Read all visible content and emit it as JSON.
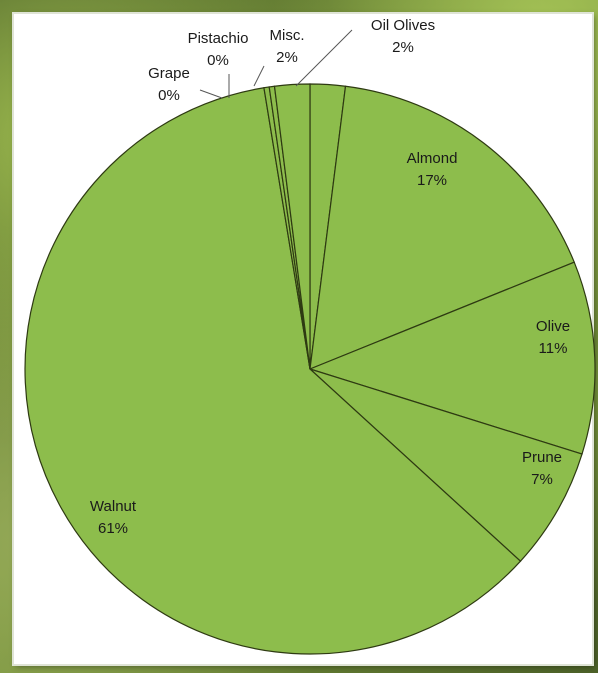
{
  "chart_data": {
    "type": "pie",
    "title": "",
    "slice_color": "#8dbd4c",
    "edge_color": "#2e3a12",
    "slices": [
      {
        "label": "Oil Olives",
        "value": 2,
        "display": "2%"
      },
      {
        "label": "Almond",
        "value": 17,
        "display": "17%"
      },
      {
        "label": "Olive",
        "value": 11,
        "display": "11%"
      },
      {
        "label": "Prune",
        "value": 7,
        "display": "7%"
      },
      {
        "label": "Walnut",
        "value": 61,
        "display": "61%"
      },
      {
        "label": "Grape",
        "value": 0.3,
        "display": "0%"
      },
      {
        "label": "Pistachio",
        "value": 0.3,
        "display": "0%"
      },
      {
        "label": "Misc.",
        "value": 2,
        "display": "2%"
      }
    ]
  }
}
